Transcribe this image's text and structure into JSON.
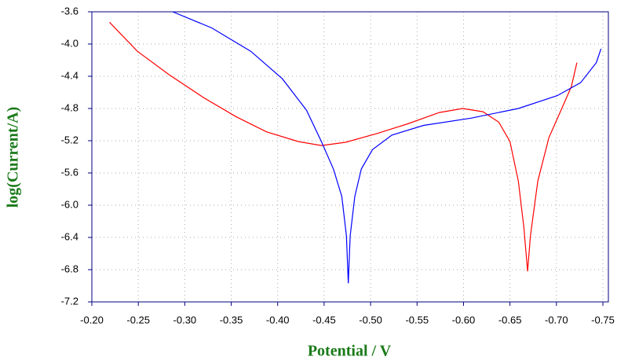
{
  "chart_data": {
    "type": "line",
    "x_label": "Potential / V",
    "y_label": "log(Current/A)",
    "xlim": [
      -0.2,
      -0.75
    ],
    "ylim": [
      -7.2,
      -3.6
    ],
    "xticks": [
      {
        "value": -0.2,
        "label": "-0.20"
      },
      -0.25,
      {
        "value": -0.3,
        "label": "-0.30"
      },
      -0.35,
      {
        "value": -0.4,
        "label": "-0.40"
      },
      -0.45,
      {
        "value": -0.5,
        "label": "-0.50"
      },
      -0.55,
      {
        "value": -0.6,
        "label": "-0.60"
      },
      -0.65,
      {
        "value": -0.7,
        "label": "-0.70"
      },
      -0.75
    ],
    "yticks": [
      -3.6,
      {
        "value": -4,
        "label": "-4.0"
      },
      -4.4,
      -4.8,
      -5.2,
      -5.6,
      {
        "value": -6,
        "label": "-6.0"
      },
      -6.4,
      -6.8,
      -7.2
    ],
    "grid": true,
    "series": [
      {
        "color": "#ff0000",
        "x": [
          -0.219,
          -0.249,
          -0.283,
          -0.321,
          -0.355,
          -0.388,
          -0.422,
          -0.447,
          -0.473,
          -0.507,
          -0.54,
          -0.574,
          -0.599,
          -0.621,
          -0.638,
          -0.65,
          -0.659,
          -0.665,
          -0.669,
          -0.672,
          -0.68,
          -0.692,
          -0.705,
          -0.716,
          -0.722
        ],
        "values": [
          -3.73,
          -4.09,
          -4.38,
          -4.67,
          -4.9,
          -5.09,
          -5.21,
          -5.26,
          -5.22,
          -5.11,
          -4.99,
          -4.85,
          -4.8,
          -4.84,
          -4.97,
          -5.21,
          -5.7,
          -6.28,
          -6.82,
          -6.38,
          -5.7,
          -5.16,
          -4.82,
          -4.53,
          -4.23
        ]
      },
      {
        "color": "#0000ff",
        "x": [
          -0.287,
          -0.329,
          -0.371,
          -0.405,
          -0.431,
          -0.447,
          -0.46,
          -0.469,
          -0.474,
          -0.476,
          -0.478,
          -0.483,
          -0.49,
          -0.502,
          -0.523,
          -0.557,
          -0.608,
          -0.659,
          -0.701,
          -0.726,
          -0.743,
          -0.748
        ],
        "values": [
          -3.6,
          -3.8,
          -4.09,
          -4.43,
          -4.82,
          -5.21,
          -5.55,
          -5.89,
          -6.38,
          -6.97,
          -6.38,
          -5.89,
          -5.55,
          -5.31,
          -5.13,
          -5.01,
          -4.92,
          -4.8,
          -4.64,
          -4.48,
          -4.23,
          -4.06
        ]
      }
    ]
  }
}
